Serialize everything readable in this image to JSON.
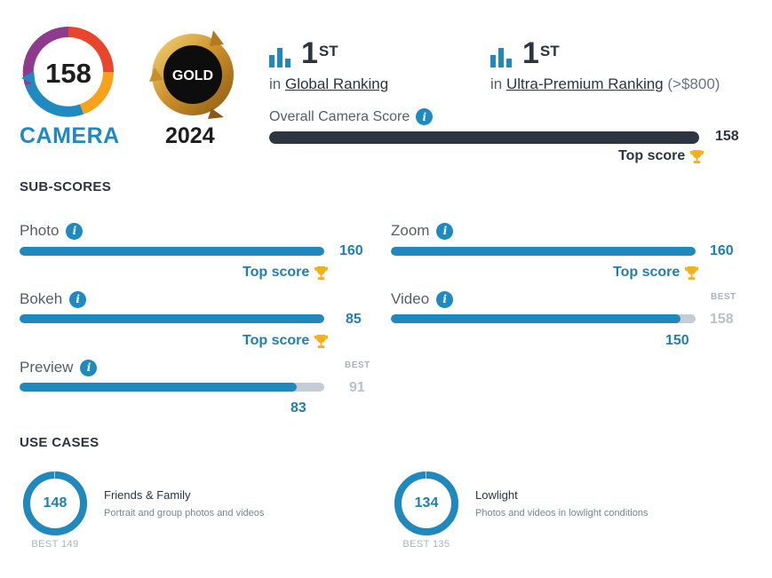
{
  "header": {
    "camera_score": "158",
    "camera_label": "CAMERA",
    "badge_label": "GOLD",
    "badge_year": "2024"
  },
  "ranking": {
    "global": {
      "rank": "1",
      "suffix": "ST",
      "prefix": "in",
      "link": "Global Ranking"
    },
    "premium": {
      "rank": "1",
      "suffix": "ST",
      "prefix": "in",
      "link": "Ultra-Premium Ranking",
      "note": "(>$800)"
    }
  },
  "overall": {
    "label": "Overall Camera Score",
    "value": "158",
    "fill_fraction": 1.0,
    "top_score_label": "Top score"
  },
  "subscores": {
    "title": "SUB-SCORES",
    "photo": {
      "label": "Photo",
      "value": "160",
      "fill_fraction": 1.0,
      "top_score_label": "Top score"
    },
    "zoom": {
      "label": "Zoom",
      "value": "160",
      "fill_fraction": 1.0,
      "top_score_label": "Top score"
    },
    "bokeh": {
      "label": "Bokeh",
      "value": "85",
      "fill_fraction": 1.0,
      "top_score_label": "Top score"
    },
    "video": {
      "label": "Video",
      "value": "150",
      "best_label": "BEST",
      "best_value": "158",
      "fill_fraction": 0.95
    },
    "preview": {
      "label": "Preview",
      "value": "83",
      "best_label": "BEST",
      "best_value": "91",
      "fill_fraction": 0.91
    }
  },
  "use_cases": {
    "title": "USE CASES",
    "friends": {
      "value": "148",
      "best": "BEST 149",
      "title": "Friends & Family",
      "desc": "Portrait and group photos and videos",
      "fill_fraction": 0.993
    },
    "lowlight": {
      "value": "134",
      "best": "BEST 135",
      "title": "Lowlight",
      "desc": "Photos and videos in lowlight conditions",
      "fill_fraction": 0.993
    }
  },
  "colors": {
    "accent_blue": "#1f88bd",
    "dark_bar": "#2d3540",
    "track_gray": "#c6ccd6",
    "trophy_gold": "#f2b01e"
  }
}
